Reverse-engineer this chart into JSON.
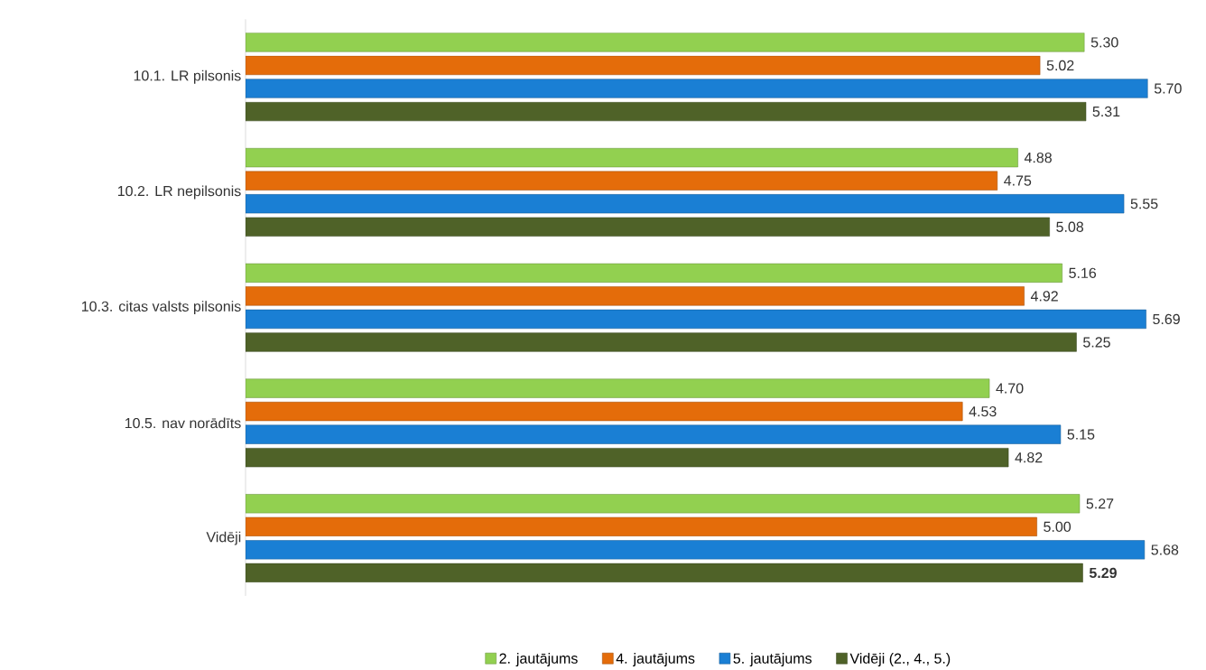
{
  "chart_data": {
    "type": "bar",
    "orientation": "horizontal",
    "legend": "bottom",
    "categories": [
      "10.1. LR pilsonis",
      "10.2. LR nepilsonis",
      "10.3. citas valsts pilsonis",
      "10.5. nav norādīts",
      "Vidēji"
    ],
    "series": [
      {
        "name": "2. jautājums",
        "color": "#92d050",
        "values": [
          5.3,
          4.88,
          5.16,
          4.7,
          5.27
        ],
        "value_labels": [
          "5.30",
          "4.88",
          "5.16",
          "4.70",
          "5.27"
        ]
      },
      {
        "name": "4. jautājums",
        "color": "#e46c0a",
        "values": [
          5.02,
          4.75,
          4.92,
          4.53,
          5.0
        ],
        "value_labels": [
          "5.02",
          "4.75",
          "4.92",
          "4.53",
          "5.00"
        ]
      },
      {
        "name": "5. jautājums",
        "color": "#1a7fd4",
        "values": [
          5.7,
          5.55,
          5.69,
          5.15,
          5.68
        ],
        "value_labels": [
          "5.70",
          "5.55",
          "5.69",
          "5.15",
          "5.68"
        ]
      },
      {
        "name": "Vidēji (2., 4., 5.)",
        "color": "#4f6228",
        "values": [
          5.31,
          5.08,
          5.25,
          4.82,
          5.29
        ],
        "value_labels": [
          "5.31",
          "5.08",
          "5.25",
          "4.82",
          "**5.29**"
        ]
      }
    ]
  }
}
